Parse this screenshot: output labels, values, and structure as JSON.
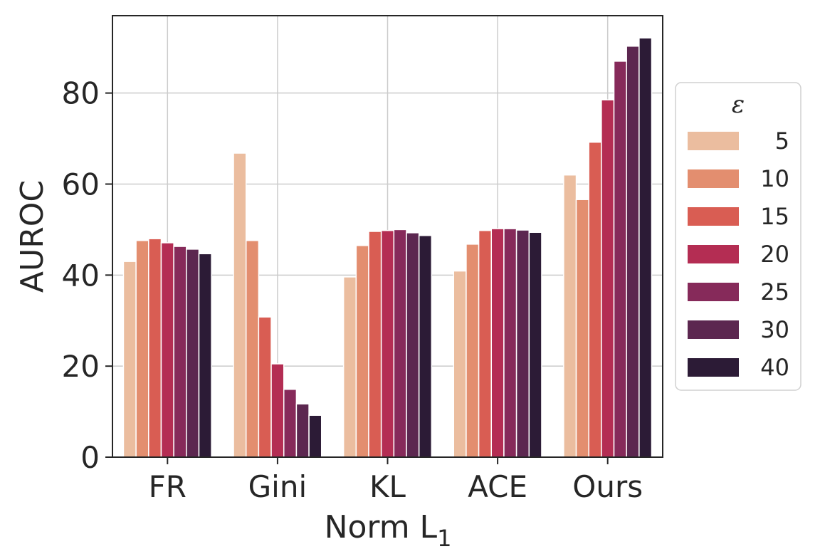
{
  "chart_data": {
    "type": "bar",
    "title": "",
    "xlabel": "Norm L",
    "xlabel_subscript": "1",
    "ylabel": "AUROC",
    "ylim": [
      0,
      97
    ],
    "yticks": [
      0,
      20,
      40,
      60,
      80
    ],
    "grid": true,
    "categories": [
      "FR",
      "Gini",
      "KL",
      "ACE",
      "Ours"
    ],
    "legend": {
      "title": "ε",
      "placement": "right"
    },
    "series": [
      {
        "name": "5",
        "color": "#ebbd9f",
        "values": [
          43.0,
          66.8,
          39.6,
          40.9,
          62.0
        ]
      },
      {
        "name": "10",
        "color": "#e38e6f",
        "values": [
          47.6,
          47.6,
          46.5,
          46.8,
          56.6
        ]
      },
      {
        "name": "15",
        "color": "#d95d53",
        "values": [
          48.0,
          30.8,
          49.6,
          49.8,
          69.2
        ]
      },
      {
        "name": "20",
        "color": "#b42d53",
        "values": [
          47.1,
          20.5,
          49.8,
          50.2,
          78.5
        ]
      },
      {
        "name": "25",
        "color": "#862a5a",
        "values": [
          46.3,
          14.9,
          50.0,
          50.2,
          87.0
        ]
      },
      {
        "name": "30",
        "color": "#5c2750",
        "values": [
          45.7,
          11.7,
          49.3,
          49.9,
          90.3
        ]
      },
      {
        "name": "40",
        "color": "#2c1b36",
        "values": [
          44.7,
          9.2,
          48.7,
          49.4,
          92.1
        ]
      }
    ]
  }
}
